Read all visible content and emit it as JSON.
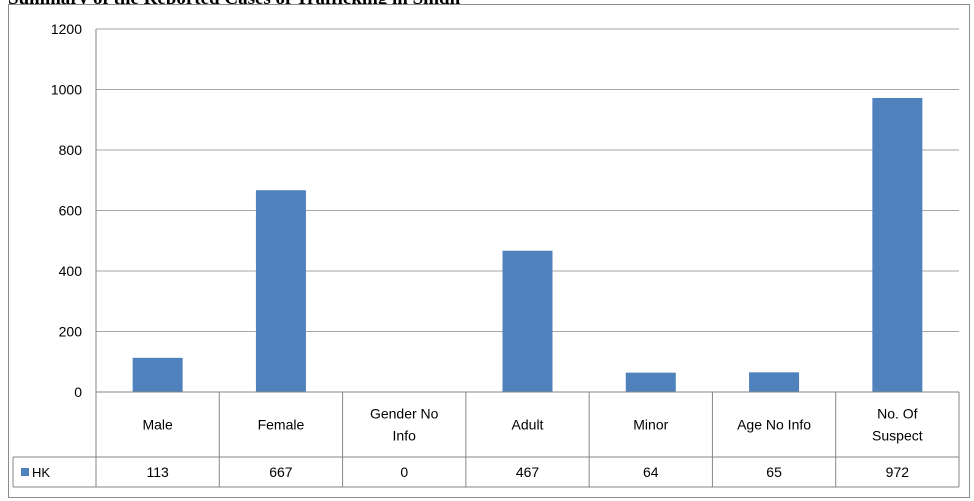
{
  "page": {
    "title": "Summary of the Reported Cases of Trafficking in Sindh"
  },
  "colors": {
    "series": "#4f81bd",
    "grid": "#a6a6a6",
    "axis": "#868686"
  },
  "chart_data": {
    "type": "bar",
    "title": "",
    "xlabel": "",
    "ylabel": "",
    "categories": [
      [
        "Male"
      ],
      [
        "Female"
      ],
      [
        "Gender No",
        "Info"
      ],
      [
        "Adult"
      ],
      [
        "Minor"
      ],
      [
        "Age No Info"
      ],
      [
        "No. Of",
        "Suspect"
      ]
    ],
    "series": [
      {
        "name": "HK",
        "values": [
          113,
          667,
          0,
          467,
          64,
          65,
          972
        ]
      }
    ],
    "ylim": [
      0,
      1200
    ],
    "yticks": [
      0,
      200,
      400,
      600,
      800,
      1000,
      1200
    ],
    "grid": true,
    "legend": "left-of-data-table",
    "data_table": true
  }
}
